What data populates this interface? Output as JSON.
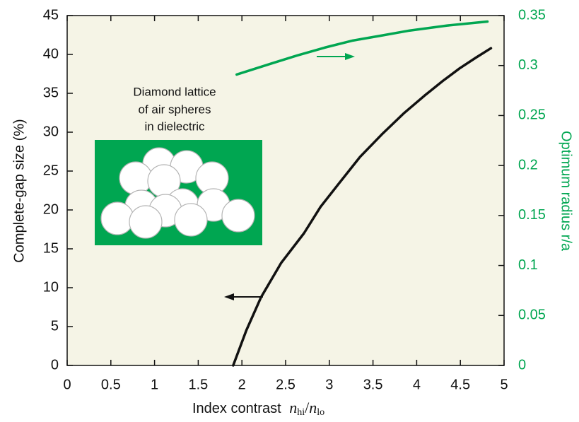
{
  "chart_data": {
    "type": "line",
    "annotation": [
      "Diamond lattice",
      "of air spheres",
      "in dielectric"
    ],
    "xlabel": "Index contrast",
    "xlabel_ratio": {
      "numerator": "n",
      "numerator_sub": "hi",
      "separator": "/",
      "denominator": "n",
      "denominator_sub": "lo"
    },
    "ylabel": "Complete-gap size   (%)",
    "y2label": "Optimum radius  r/a",
    "xlim": [
      0,
      5
    ],
    "xticks": [
      0,
      0.5,
      1,
      1.5,
      2,
      2.5,
      3,
      3.5,
      4,
      4.5,
      5
    ],
    "ylim": [
      0,
      45
    ],
    "yticks": [
      0,
      5,
      10,
      15,
      20,
      25,
      30,
      35,
      40,
      45
    ],
    "y2lim": [
      0,
      0.35
    ],
    "y2ticks": [
      0,
      0.05,
      0.1,
      0.15,
      0.2,
      0.25,
      0.3,
      0.35
    ],
    "grid": false,
    "series": [
      {
        "color": "#111111",
        "axis": "y",
        "x": [
          1.9,
          2.05,
          2.22,
          2.45,
          2.71,
          2.9,
          3.11,
          3.35,
          3.6,
          3.85,
          4.09,
          4.3,
          4.49,
          4.68,
          4.85
        ],
        "values": [
          0,
          4.5,
          8.8,
          13.2,
          17,
          20.4,
          23.4,
          26.8,
          29.7,
          32.4,
          34.7,
          36.6,
          38.2,
          39.6,
          40.8
        ]
      },
      {
        "color": "#00a651",
        "axis": "y2",
        "x": [
          1.94,
          2.3,
          2.63,
          2.95,
          3.27,
          3.6,
          3.92,
          4.35,
          4.81
        ],
        "values": [
          0.291,
          0.301,
          0.31,
          0.318,
          0.325,
          0.33,
          0.335,
          0.34,
          0.344
        ]
      }
    ]
  }
}
